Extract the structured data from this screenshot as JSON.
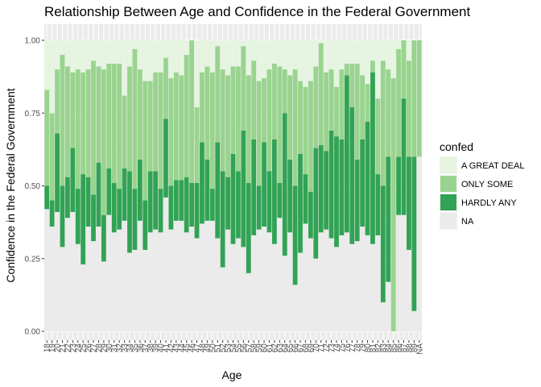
{
  "chart_data": {
    "type": "bar",
    "stacked": true,
    "position": "fill",
    "title": "Relationship Between Age and Confidence in the Federal Government",
    "xlabel": "Age",
    "ylabel": "Confidence in the Federal Government",
    "ylim": [
      0,
      1
    ],
    "yticks": [
      "0.00",
      "0.25",
      "0.50",
      "0.75",
      "1.00"
    ],
    "categories": [
      "18",
      "19",
      "20",
      "21",
      "22",
      "23",
      "24",
      "25",
      "26",
      "27",
      "28",
      "29",
      "30",
      "31",
      "32",
      "33",
      "34",
      "35",
      "36",
      "37",
      "38",
      "39",
      "40",
      "41",
      "42",
      "43",
      "44",
      "45",
      "46",
      "47",
      "48",
      "49",
      "50",
      "51",
      "52",
      "53",
      "54",
      "55",
      "56",
      "57",
      "58",
      "59",
      "60",
      "61",
      "62",
      "63",
      "64",
      "65",
      "66",
      "67",
      "68",
      "69",
      "70",
      "71",
      "72",
      "73",
      "74",
      "75",
      "76",
      "77",
      "78",
      "79",
      "80",
      "81",
      "82",
      "83",
      "84",
      "85",
      "86",
      "87",
      "88",
      "89",
      "NA"
    ],
    "series": [
      {
        "name": "NA",
        "color": "#ebebeb",
        "values": [
          0.42,
          0.36,
          0.41,
          0.29,
          0.39,
          0.41,
          0.3,
          0.23,
          0.36,
          0.31,
          0.36,
          0.24,
          0.4,
          0.34,
          0.35,
          0.38,
          0.27,
          0.28,
          0.38,
          0.28,
          0.34,
          0.35,
          0.34,
          0.46,
          0.35,
          0.38,
          0.38,
          0.34,
          0.36,
          0.32,
          0.37,
          0.38,
          0.38,
          0.32,
          0.22,
          0.35,
          0.3,
          0.32,
          0.29,
          0.2,
          0.33,
          0.35,
          0.36,
          0.34,
          0.3,
          0.39,
          0.26,
          0.34,
          0.16,
          0.27,
          0.37,
          0.32,
          0.25,
          0.34,
          0.35,
          0.32,
          0.29,
          0.33,
          0.34,
          0.3,
          0.31,
          0.36,
          0.33,
          0.3,
          0.33,
          0.1,
          0.17,
          0.0,
          0.4,
          0.4,
          0.28,
          0.07,
          0.6
        ]
      },
      {
        "name": "HARDLY ANY",
        "color": "#31a354",
        "values": [
          0.08,
          0.09,
          0.27,
          0.21,
          0.14,
          0.22,
          0.19,
          0.31,
          0.17,
          0.16,
          0.22,
          0.16,
          0.16,
          0.17,
          0.14,
          0.18,
          0.28,
          0.21,
          0.21,
          0.17,
          0.21,
          0.2,
          0.15,
          0.27,
          0.15,
          0.14,
          0.14,
          0.19,
          0.15,
          0.19,
          0.28,
          0.21,
          0.11,
          0.33,
          0.33,
          0.18,
          0.31,
          0.23,
          0.4,
          0.31,
          0.33,
          0.15,
          0.29,
          0.21,
          0.36,
          0.12,
          0.49,
          0.25,
          0.34,
          0.34,
          0.17,
          0.16,
          0.38,
          0.3,
          0.27,
          0.37,
          0.38,
          0.33,
          0.54,
          0.47,
          0.28,
          0.3,
          0.39,
          0.59,
          0.21,
          0.4,
          0.43,
          0.0,
          0.2,
          0.4,
          0.32,
          0.53,
          0.0
        ]
      },
      {
        "name": "ONLY SOME",
        "color": "#99d48e",
        "values": [
          0.33,
          0.3,
          0.22,
          0.45,
          0.38,
          0.26,
          0.41,
          0.35,
          0.37,
          0.46,
          0.33,
          0.5,
          0.36,
          0.41,
          0.43,
          0.25,
          0.36,
          0.48,
          0.31,
          0.41,
          0.31,
          0.34,
          0.4,
          0.21,
          0.37,
          0.37,
          0.36,
          0.42,
          0.49,
          0.26,
          0.24,
          0.32,
          0.4,
          0.33,
          0.35,
          0.35,
          0.3,
          0.36,
          0.29,
          0.37,
          0.27,
          0.36,
          0.22,
          0.35,
          0.26,
          0.4,
          0.15,
          0.29,
          0.4,
          0.25,
          0.3,
          0.38,
          0.28,
          0.35,
          0.27,
          0.21,
          0.17,
          0.24,
          0.04,
          0.15,
          0.33,
          0.22,
          0.13,
          0.04,
          0.26,
          0.43,
          0.3,
          0.87,
          0.37,
          0.2,
          0.33,
          0.4,
          0.4
        ]
      },
      {
        "name": "A GREAT DEAL",
        "color": "#e5f5e0",
        "values": [
          0.17,
          0.25,
          0.1,
          0.05,
          0.09,
          0.11,
          0.1,
          0.11,
          0.1,
          0.07,
          0.09,
          0.1,
          0.08,
          0.08,
          0.08,
          0.19,
          0.09,
          0.03,
          0.1,
          0.14,
          0.14,
          0.11,
          0.11,
          0.06,
          0.13,
          0.11,
          0.12,
          0.05,
          0.0,
          0.23,
          0.11,
          0.09,
          0.11,
          0.02,
          0.1,
          0.12,
          0.09,
          0.09,
          0.02,
          0.12,
          0.07,
          0.14,
          0.13,
          0.1,
          0.08,
          0.09,
          0.1,
          0.12,
          0.1,
          0.14,
          0.16,
          0.14,
          0.09,
          0.01,
          0.11,
          0.1,
          0.16,
          0.1,
          0.08,
          0.08,
          0.08,
          0.12,
          0.15,
          0.07,
          0.2,
          0.07,
          0.1,
          0.13,
          0.03,
          0.0,
          0.07,
          0.0,
          0.0
        ]
      }
    ],
    "legend": {
      "title": "confed",
      "position": "right",
      "entries": [
        "A GREAT DEAL",
        "ONLY SOME",
        "HARDLY ANY",
        "NA"
      ]
    },
    "grid": true
  }
}
